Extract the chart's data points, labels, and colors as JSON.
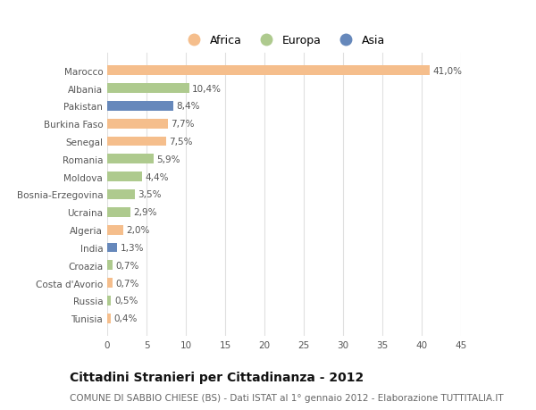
{
  "categories": [
    "Tunisia",
    "Russia",
    "Costa d'Avorio",
    "Croazia",
    "India",
    "Algeria",
    "Ucraina",
    "Bosnia-Erzegovina",
    "Moldova",
    "Romania",
    "Senegal",
    "Burkina Faso",
    "Pakistan",
    "Albania",
    "Marocco"
  ],
  "values": [
    0.4,
    0.5,
    0.7,
    0.7,
    1.3,
    2.0,
    2.9,
    3.5,
    4.4,
    5.9,
    7.5,
    7.7,
    8.4,
    10.4,
    41.0
  ],
  "labels": [
    "0,4%",
    "0,5%",
    "0,7%",
    "0,7%",
    "1,3%",
    "2,0%",
    "2,9%",
    "3,5%",
    "4,4%",
    "5,9%",
    "7,5%",
    "7,7%",
    "8,4%",
    "10,4%",
    "41,0%"
  ],
  "continents": [
    "Africa",
    "Europa",
    "Africa",
    "Europa",
    "Asia",
    "Africa",
    "Europa",
    "Europa",
    "Europa",
    "Europa",
    "Africa",
    "Africa",
    "Asia",
    "Europa",
    "Africa"
  ],
  "colors": {
    "Africa": "#F5BE8C",
    "Europa": "#AECA8E",
    "Asia": "#6688BB"
  },
  "legend_labels": [
    "Africa",
    "Europa",
    "Asia"
  ],
  "legend_colors": [
    "#F5BE8C",
    "#AECA8E",
    "#6688BB"
  ],
  "title": "Cittadini Stranieri per Cittadinanza - 2012",
  "subtitle": "COMUNE DI SABBIO CHIESE (BS) - Dati ISTAT al 1° gennaio 2012 - Elaborazione TUTTITALIA.IT",
  "xlim": [
    0,
    45
  ],
  "xticks": [
    0,
    5,
    10,
    15,
    20,
    25,
    30,
    35,
    40,
    45
  ],
  "background_color": "#ffffff",
  "grid_color": "#e0e0e0",
  "bar_height": 0.55,
  "label_fontsize": 7.5,
  "tick_fontsize": 7.5,
  "ytick_fontsize": 7.5,
  "title_fontsize": 10,
  "subtitle_fontsize": 7.5,
  "legend_fontsize": 9
}
